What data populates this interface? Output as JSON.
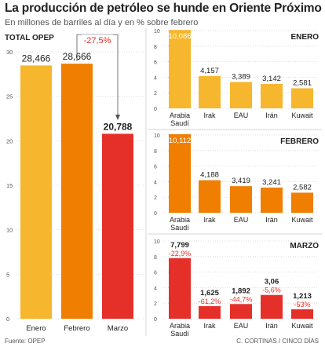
{
  "title": "La producción de petróleo se hunde en Oriente Próximo",
  "subtitle": "En millones de barriles al día y en % sobre febrero",
  "source": "Fuente: OPEP",
  "credits": "C. CORTINAS / CINCO DÍAS",
  "colors": {
    "yellow": "#f6b62d",
    "orange": "#f07e00",
    "red": "#e5302a",
    "neg": "#e5302a",
    "grid": "#d4d4d4",
    "text": "#222222"
  },
  "chart_data": [
    {
      "type": "bar",
      "title": "TOTAL OPEP",
      "categories": [
        "Enero",
        "Febrero",
        "Marzo"
      ],
      "values": [
        28.466,
        28.666,
        20.788
      ],
      "value_labels": [
        "28,466",
        "28,666",
        "20,788"
      ],
      "ylim": [
        0,
        30
      ],
      "yticks": [
        0,
        5,
        10,
        15,
        20,
        25,
        30
      ],
      "annotation": "-27,5%"
    },
    {
      "type": "bar",
      "title": "ENERO",
      "categories": [
        "Arabia Saudí",
        "Irak",
        "EAU",
        "Irán",
        "Kuwait"
      ],
      "values": [
        10.086,
        4.157,
        3.389,
        3.142,
        2.581
      ],
      "value_labels": [
        "10,086",
        "4,157",
        "3,389",
        "3,142",
        "2,581"
      ],
      "ylim": [
        0,
        10
      ],
      "yticks": [
        0,
        2,
        4,
        6,
        8,
        10
      ]
    },
    {
      "type": "bar",
      "title": "FEBRERO",
      "categories": [
        "Arabia Saudí",
        "Irak",
        "EAU",
        "Irán",
        "Kuwait"
      ],
      "values": [
        10.112,
        4.188,
        3.419,
        3.241,
        2.582
      ],
      "value_labels": [
        "10,112",
        "4,188",
        "3,419",
        "3,241",
        "2,582"
      ],
      "ylim": [
        0,
        10
      ],
      "yticks": [
        0,
        2,
        4,
        6,
        8,
        10
      ]
    },
    {
      "type": "bar",
      "title": "MARZO",
      "categories": [
        "Arabia Saudí",
        "Irak",
        "EAU",
        "Irán",
        "Kuwait"
      ],
      "values": [
        7.799,
        1.625,
        1.892,
        3.06,
        1.213
      ],
      "value_labels": [
        "7,799",
        "1,625",
        "1,892",
        "3,06",
        "1,213"
      ],
      "pct_labels": [
        "-22,9%",
        "-61,2%",
        "-44,7%",
        "-5,6%",
        "-53%"
      ],
      "ylim": [
        0,
        10
      ],
      "yticks": [
        0,
        2,
        4,
        6,
        8,
        10
      ]
    }
  ]
}
